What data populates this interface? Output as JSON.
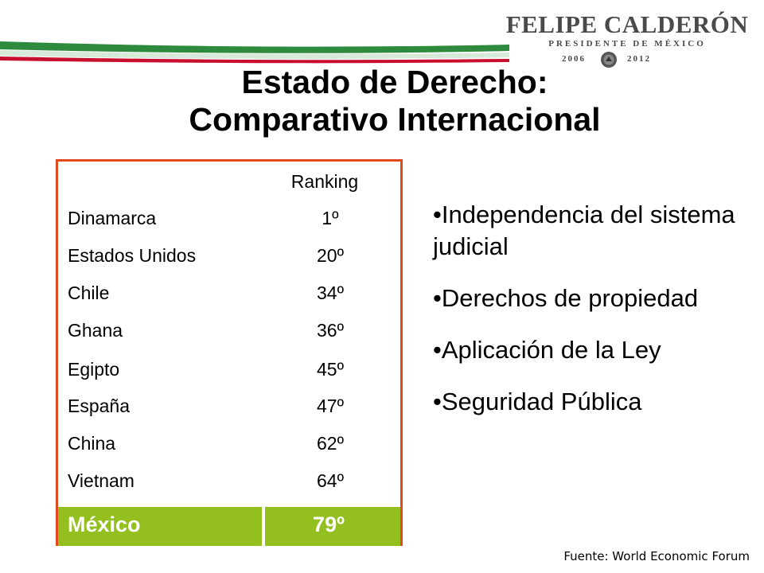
{
  "logo": {
    "name": "FELIPE CALDERÓN",
    "role": "PRESIDENTE DE MÉXICO",
    "term_start": "2006",
    "term_end": "2012"
  },
  "title": {
    "line1": "Estado de Derecho:",
    "line2": "Comparativo Internacional"
  },
  "table": {
    "header": "Ranking",
    "rows": [
      {
        "country": "Dinamarca",
        "rank": "1º"
      },
      {
        "country": "Estados Unidos",
        "rank": "20º"
      },
      {
        "country": "Chile",
        "rank": "34º"
      },
      {
        "country": "Ghana",
        "rank": "36º"
      },
      {
        "country": "Egipto",
        "rank": "45º"
      },
      {
        "country": "España",
        "rank": "47º"
      },
      {
        "country": "China",
        "rank": "62º"
      },
      {
        "country": "Vietnam",
        "rank": "64º"
      }
    ],
    "highlight": {
      "country": "México",
      "rank": "79º"
    }
  },
  "bullets": [
    "Independencia del sistema judicial",
    "Derechos de propiedad",
    "Aplicación de la Ley",
    "Seguridad Pública"
  ],
  "source": "Fuente: World Economic Forum",
  "colors": {
    "border": "#e34a1e",
    "highlight_bg": "#93c01f",
    "swoosh_green": "#2e8b3d",
    "swoosh_red": "#c8102e"
  }
}
